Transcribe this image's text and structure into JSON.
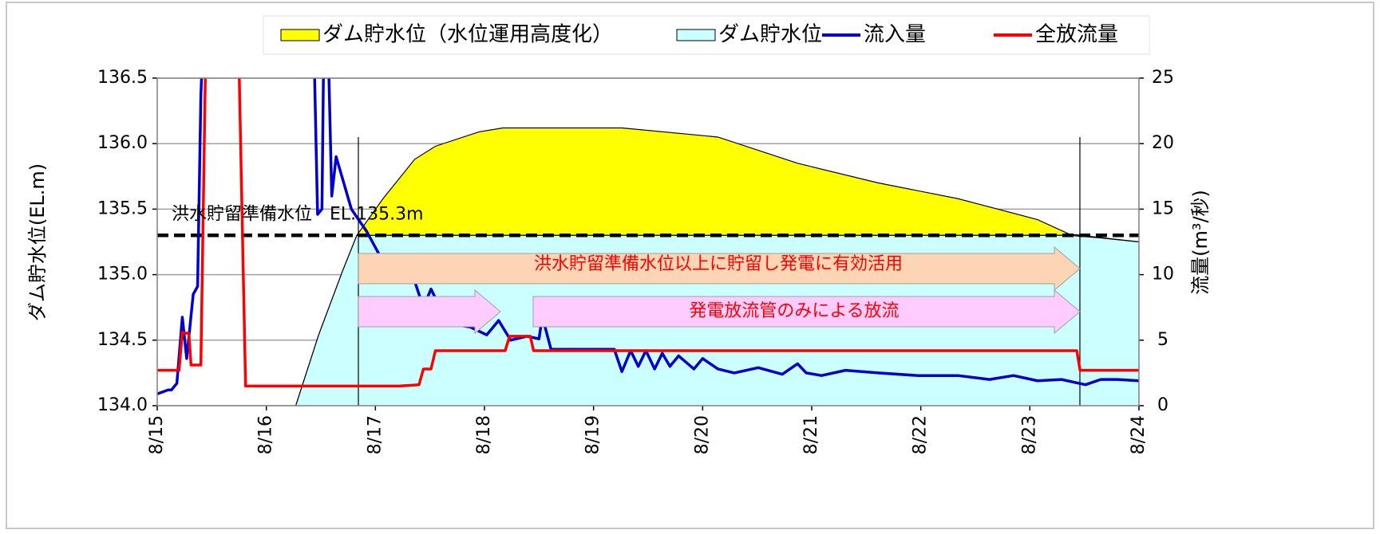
{
  "chart_data": {
    "type": "line",
    "xlim": [
      15,
      24
    ],
    "xticks": [
      {
        "value": 15,
        "label": "8/15"
      },
      {
        "value": 16,
        "label": "8/16"
      },
      {
        "value": 17,
        "label": "8/17"
      },
      {
        "value": 18,
        "label": "8/18"
      },
      {
        "value": 19,
        "label": "8/19"
      },
      {
        "value": 20,
        "label": "8/20"
      },
      {
        "value": 21,
        "label": "8/21"
      },
      {
        "value": 22,
        "label": "8/22"
      },
      {
        "value": 23,
        "label": "8/23"
      },
      {
        "value": 24,
        "label": "8/24"
      }
    ],
    "ylim": [
      134,
      136.5
    ],
    "yticks": [
      {
        "value": 134,
        "label": "134.0"
      },
      {
        "value": 134.5,
        "label": "134.5"
      },
      {
        "value": 135,
        "label": "135.0"
      },
      {
        "value": 135.5,
        "label": "135.5"
      },
      {
        "value": 136,
        "label": "136.0"
      },
      {
        "value": 136.5,
        "label": "136.5"
      }
    ],
    "y2lim": [
      0,
      25
    ],
    "y2ticks": [
      0,
      5,
      10,
      15,
      20,
      25
    ],
    "ylabel": "ダム貯水位(EL.m)",
    "y2label": "流量(m³/秒)",
    "grid": true,
    "legend": "top",
    "series": [
      {
        "name": "ダム貯水位（水位運用高度化）",
        "type": "area",
        "color": "#ffff00",
        "stroke": "#000000",
        "x": [
          16.27,
          16.48,
          16.7,
          16.83,
          17.07,
          17.36,
          17.55,
          17.95,
          18.17,
          19.26,
          20.14,
          20.87,
          21.61,
          22.34,
          23.07,
          23.36,
          24.0
        ],
        "values": [
          134.0,
          134.54,
          135.03,
          135.3,
          135.58,
          135.88,
          135.98,
          136.09,
          136.12,
          136.12,
          136.05,
          135.85,
          135.7,
          135.58,
          135.42,
          135.31,
          135.25
        ]
      },
      {
        "name": "ダム貯水位",
        "type": "area",
        "color": "#ccffff",
        "stroke": "#000000",
        "x": [
          16.27,
          16.48,
          16.7,
          16.83,
          23.36,
          23.65,
          24.0
        ],
        "values": [
          134.0,
          134.54,
          135.03,
          135.3,
          135.3,
          135.28,
          135.25
        ]
      },
      {
        "name": "流入量",
        "type": "line",
        "color": "#0000cc",
        "axis": "y2",
        "x": [
          15.0,
          15.1,
          15.13,
          15.18,
          15.23,
          15.27,
          15.33,
          15.37,
          15.4,
          15.43,
          16.43,
          16.47,
          16.51,
          16.53,
          16.56,
          16.6,
          16.64,
          16.78,
          16.92,
          17.07,
          17.22,
          17.36,
          17.44,
          17.51,
          17.66,
          17.87,
          18.02,
          18.13,
          18.24,
          18.39,
          18.5,
          18.53,
          18.61,
          19.19,
          19.26,
          19.34,
          19.41,
          19.48,
          19.56,
          19.63,
          19.7,
          19.78,
          19.92,
          20.0,
          20.14,
          20.29,
          20.51,
          20.73,
          20.87,
          20.95,
          21.09,
          21.31,
          21.61,
          21.97,
          22.34,
          22.63,
          22.85,
          23.07,
          23.29,
          23.4,
          23.51,
          23.65,
          23.8,
          24.0
        ],
        "values": [
          0.9,
          1.2,
          1.2,
          1.7,
          6.75,
          3.6,
          8.5,
          9.1,
          23.7,
          30,
          30,
          14.6,
          15,
          30,
          30,
          16,
          19,
          15,
          13.3,
          11,
          10.4,
          9.5,
          7.5,
          8.9,
          6.3,
          6.0,
          5.4,
          6.5,
          5.0,
          5.3,
          5.1,
          6.8,
          4.3,
          4.3,
          2.6,
          4.2,
          3.0,
          4.2,
          2.8,
          4.0,
          3.0,
          3.8,
          2.8,
          3.6,
          2.8,
          2.5,
          2.9,
          2.4,
          3.2,
          2.5,
          2.3,
          2.7,
          2.5,
          2.3,
          2.3,
          2.0,
          2.3,
          1.9,
          2.0,
          1.8,
          1.6,
          2.0,
          2.0,
          1.9
        ]
      },
      {
        "name": "全放流量",
        "type": "line",
        "color": "#ff0000",
        "axis": "y2",
        "x": [
          15.0,
          15.2,
          15.23,
          15.29,
          15.31,
          15.4,
          15.45,
          15.74,
          15.81,
          17.22,
          17.4,
          17.44,
          17.51,
          17.55,
          18.19,
          18.23,
          18.42,
          18.45,
          23.43,
          23.46,
          24.0
        ],
        "values": [
          2.7,
          2.7,
          5.6,
          5.5,
          3.1,
          3.1,
          30,
          30,
          1.5,
          1.5,
          1.6,
          2.8,
          2.8,
          4.2,
          4.2,
          5.3,
          5.3,
          4.2,
          4.2,
          2.7,
          2.7
        ]
      }
    ],
    "annotations": [
      {
        "text": "洪水貯留準備水位　EL.135.3m",
        "value": 135.3
      },
      {
        "text": "洪水貯留準備水位以上に貯留し発電に有効活用"
      },
      {
        "text": "発電放流管のみによる放流"
      }
    ]
  }
}
